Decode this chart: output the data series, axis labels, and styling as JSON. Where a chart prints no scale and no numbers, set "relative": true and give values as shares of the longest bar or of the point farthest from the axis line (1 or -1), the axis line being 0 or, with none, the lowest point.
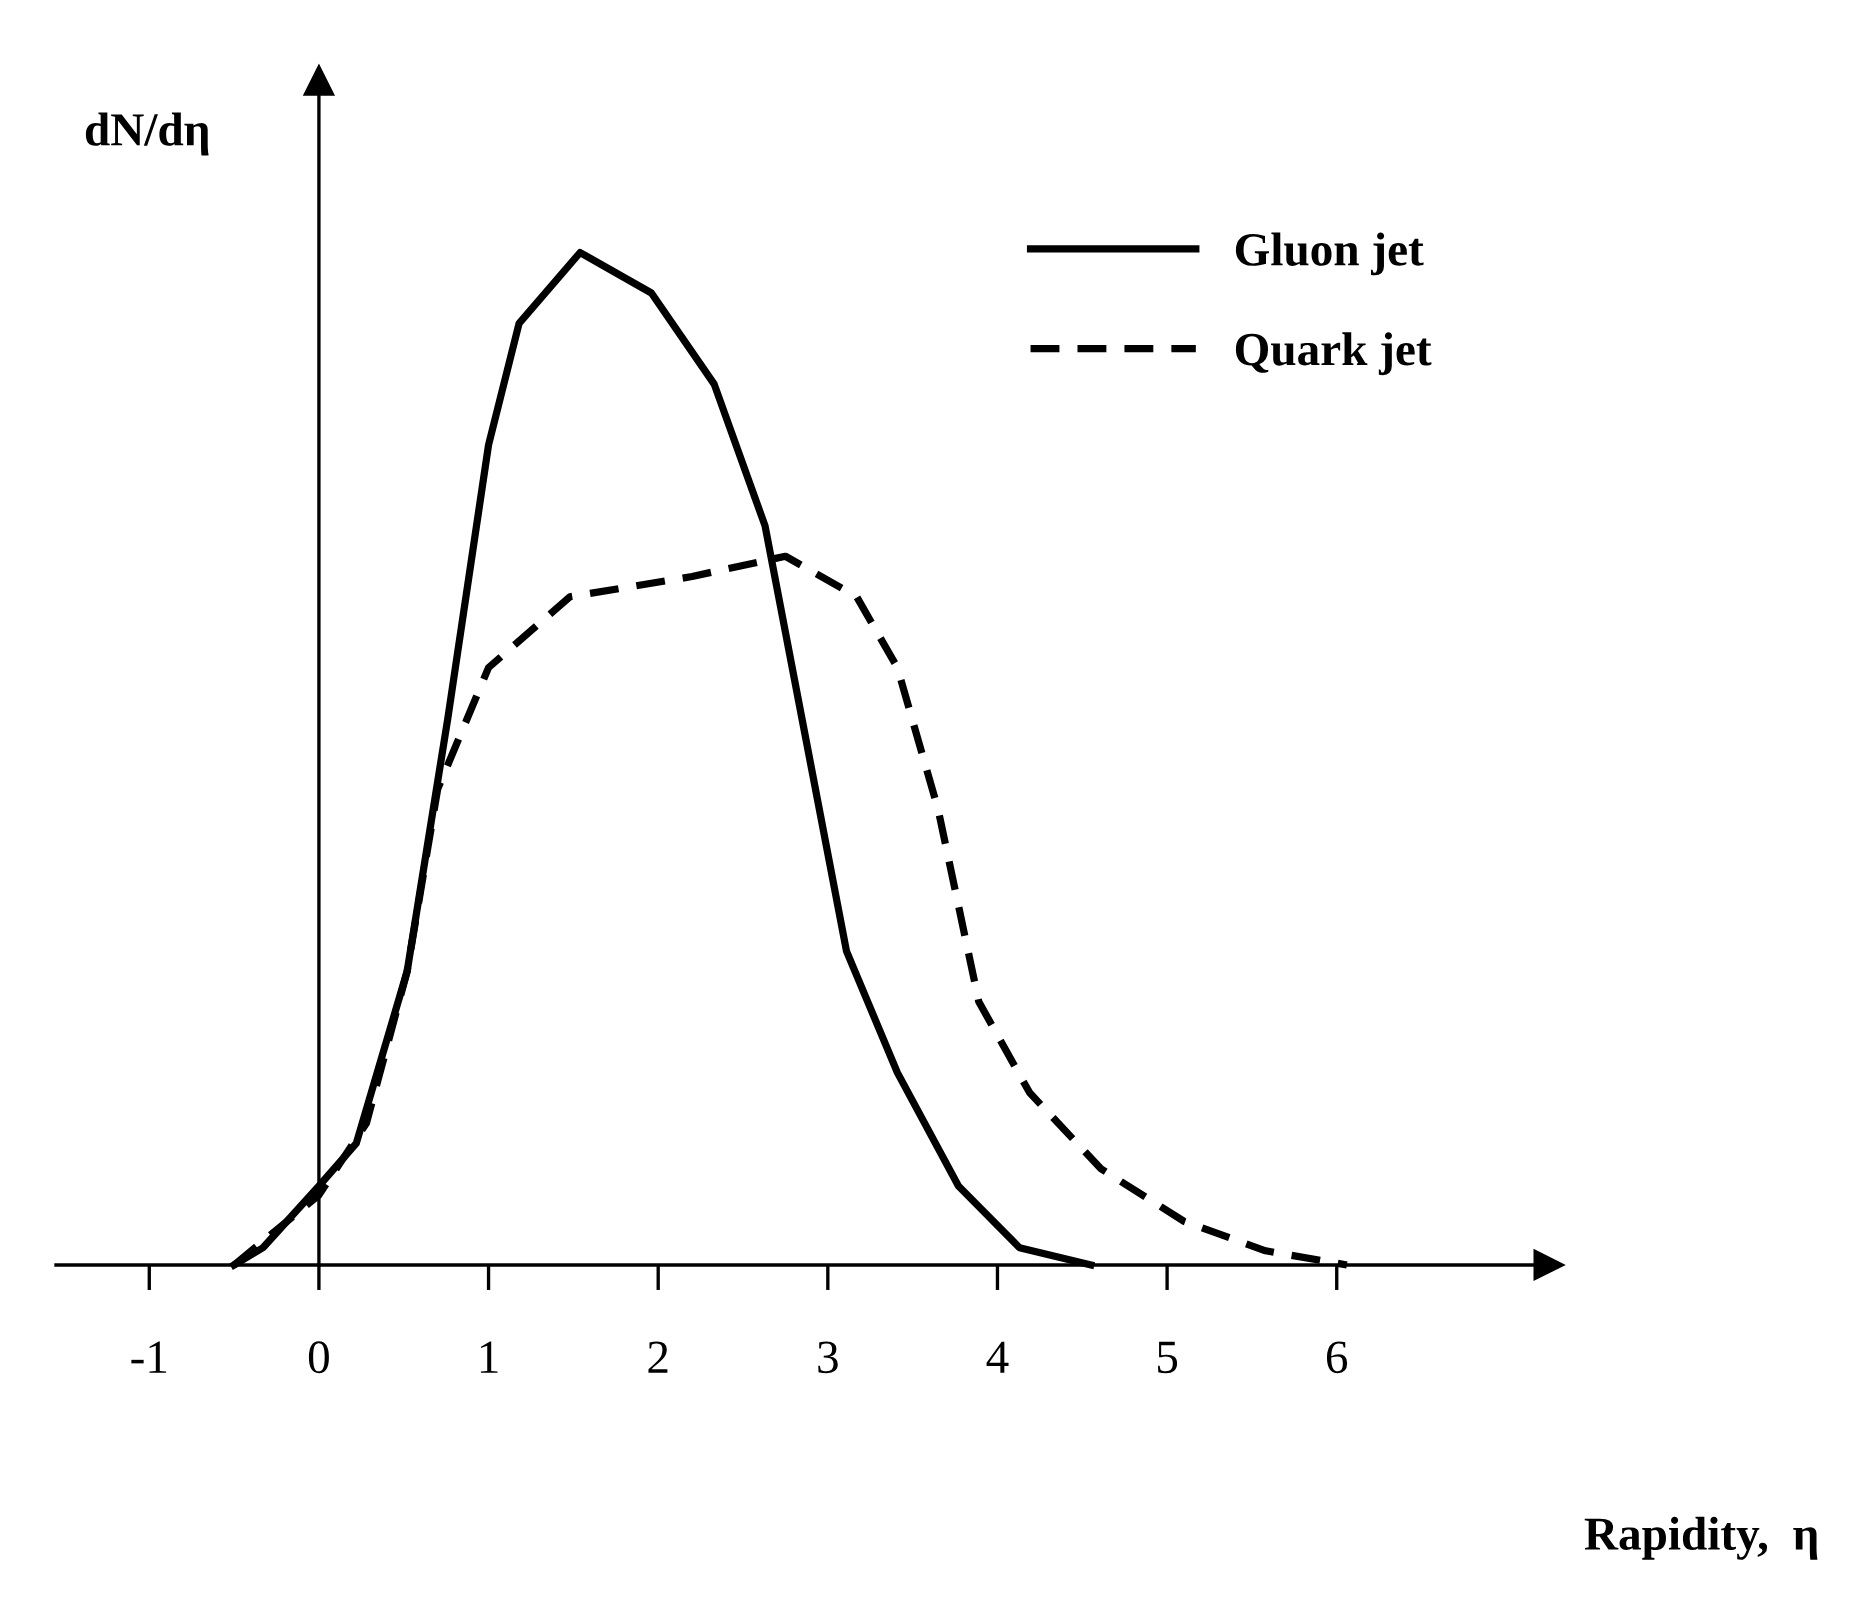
{
  "chart_data": {
    "type": "line",
    "relative": true,
    "xlabel": "Rapidity,  η",
    "ylabel": "dN/dη",
    "xlim": [
      -1.55,
      7.25
    ],
    "xticks": [
      -1,
      0,
      1,
      2,
      3,
      4,
      5,
      6
    ],
    "legend": "top right",
    "marker": "none",
    "series": [
      {
        "name": "Gluon jet",
        "color": "#000000",
        "line_style": "solid",
        "x": [
          -0.5,
          -0.33,
          0,
          0.22,
          0.52,
          0.76,
          1.0,
          1.18,
          1.54,
          1.96,
          2.33,
          2.63,
          2.87,
          3.11,
          3.41,
          3.77,
          4.13,
          4.55
        ],
        "values": [
          0,
          0.017,
          0.078,
          0.12,
          0.29,
          0.54,
          0.81,
          0.93,
          1.0,
          0.96,
          0.87,
          0.73,
          0.52,
          0.31,
          0.19,
          0.078,
          0.017,
          0
        ]
      },
      {
        "name": "Quark jet",
        "color": "#000000",
        "line_style": "dashed",
        "x": [
          -0.5,
          0,
          0.28,
          0.52,
          0.7,
          1.0,
          1.48,
          2.2,
          2.75,
          3.17,
          3.41,
          3.65,
          3.89,
          4.19,
          4.61,
          5.1,
          5.58,
          6.06
        ],
        "values": [
          0,
          0.069,
          0.14,
          0.29,
          0.47,
          0.59,
          0.66,
          0.68,
          0.7,
          0.66,
          0.59,
          0.45,
          0.26,
          0.17,
          0.095,
          0.043,
          0.014,
          0
        ]
      }
    ]
  }
}
